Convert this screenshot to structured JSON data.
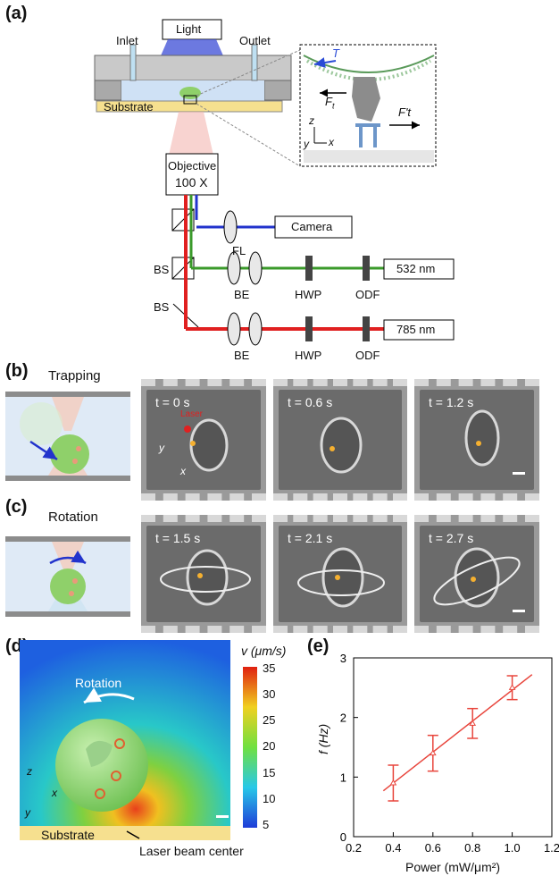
{
  "panels": {
    "a": "(a)",
    "b": "(b)",
    "c": "(c)",
    "d": "(d)",
    "e": "(e)"
  },
  "setup": {
    "light": "Light",
    "inlet": "Inlet",
    "outlet": "Outlet",
    "substrate": "Substrate",
    "objective_line1": "Objective",
    "objective_line2": "100 X",
    "camera": "Camera",
    "fl": "FL",
    "bs1": "BS",
    "bs2": "BS",
    "be1": "BE",
    "be2": "BE",
    "hwp1": "HWP",
    "hwp2": "HWP",
    "odf1": "ODF",
    "odf2": "ODF",
    "laser1": "532 nm",
    "laser2": "785 nm",
    "inset_T": "T",
    "inset_Ft": "F",
    "inset_Ft_sub": "t",
    "inset_Fpt": "F't",
    "axis_z": "z",
    "axis_y": "y",
    "axis_x": "x"
  },
  "trapping": {
    "title": "Trapping",
    "frames": [
      "t = 0 s",
      "t = 0.6 s",
      "t = 1.2 s"
    ],
    "laser_label": "Laser",
    "axis_y": "y",
    "axis_x": "x"
  },
  "rotation": {
    "title": "Rotation",
    "frames": [
      "t = 1.5 s",
      "t = 2.1 s",
      "t = 2.7 s"
    ]
  },
  "flow": {
    "rotation_label": "Rotation",
    "substrate_label": "Substrate",
    "laser_center_label": "Laser beam center",
    "colorbar_title": "v (μm/s)",
    "colorbar_ticks": [
      "35",
      "30",
      "25",
      "20",
      "15",
      "10",
      "5"
    ],
    "axis_z": "z",
    "axis_y": "y",
    "axis_x": "x"
  },
  "chart_data": {
    "type": "line",
    "xlabel": "Power (mW/μm²)",
    "ylabel": "f (Hz)",
    "xlim": [
      0.2,
      1.2
    ],
    "ylim": [
      0,
      3
    ],
    "xticks": [
      "0.2",
      "0.4",
      "0.6",
      "0.8",
      "1.0",
      "1.2"
    ],
    "yticks": [
      "0",
      "1",
      "2",
      "3"
    ],
    "points": [
      {
        "x": 0.4,
        "y": 0.9,
        "err": 0.3
      },
      {
        "x": 0.6,
        "y": 1.4,
        "err": 0.3
      },
      {
        "x": 0.8,
        "y": 1.9,
        "err": 0.25
      },
      {
        "x": 1.0,
        "y": 2.5,
        "err": 0.2
      }
    ],
    "fit": {
      "x": [
        0.35,
        1.1
      ],
      "y": [
        0.77,
        2.72
      ]
    },
    "color": "#e8453c"
  }
}
